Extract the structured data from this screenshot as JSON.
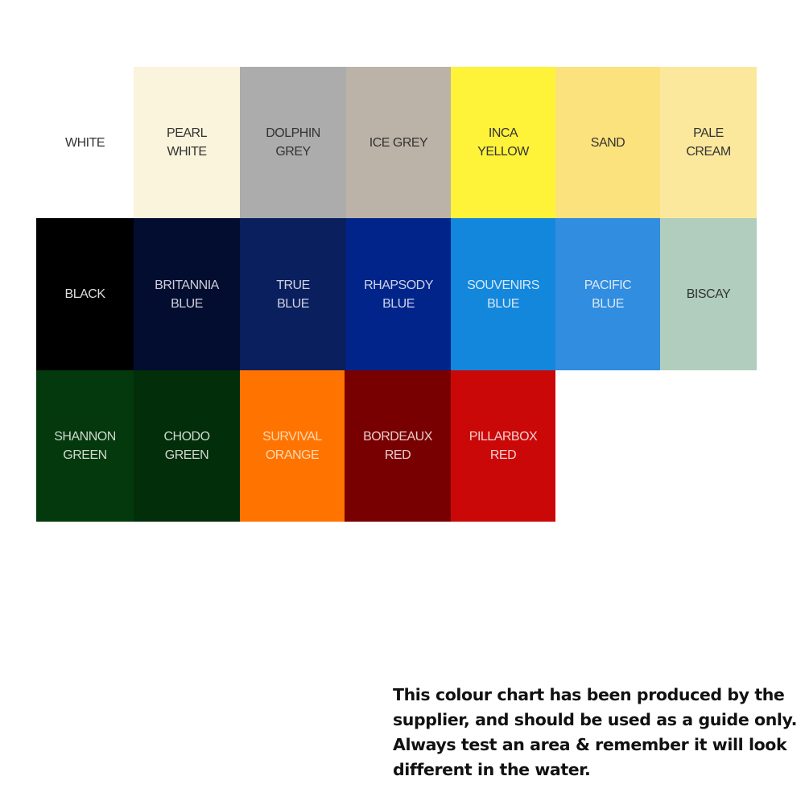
{
  "swatches": [
    {
      "label": "WHITE",
      "color": "#ffffff",
      "text_color": "#333333"
    },
    {
      "label": "PEARL\nWHITE",
      "color": "#faf4dc",
      "text_color": "#333333"
    },
    {
      "label": "DOLPHIN\nGREY",
      "color": "#acacac",
      "text_color": "#333333"
    },
    {
      "label": "ICE GREY",
      "color": "#bcb3a8",
      "text_color": "#333333"
    },
    {
      "label": "INCA\nYELLOW",
      "color": "#fff33a",
      "text_color": "#333333"
    },
    {
      "label": "SAND",
      "color": "#fce27c",
      "text_color": "#333333"
    },
    {
      "label": "PALE\nCREAM",
      "color": "#fbe89c",
      "text_color": "#333333"
    },
    {
      "label": "BLACK",
      "color": "#000000",
      "text_color": "#dddddd"
    },
    {
      "label": "BRITANNIA\nBLUE",
      "color": "#020d30",
      "text_color": "#cfcfd8"
    },
    {
      "label": "TRUE\nBLUE",
      "color": "#0a1f5e",
      "text_color": "#cfd3e0"
    },
    {
      "label": "RHAPSODY\nBLUE",
      "color": "#01248a",
      "text_color": "#cdd3ea"
    },
    {
      "label": "SOUVENIRS\nBLUE",
      "color": "#1387dc",
      "text_color": "#d8e8f6"
    },
    {
      "label": "PACIFIC\nBLUE",
      "color": "#308ddf",
      "text_color": "#dbe9f7"
    },
    {
      "label": "BISCAY",
      "color": "#b0cdbd",
      "text_color": "#333333"
    },
    {
      "label": "SHANNON\nGREEN",
      "color": "#03390d",
      "text_color": "#cfd8cf"
    },
    {
      "label": "CHODO\nGREEN",
      "color": "#022e0a",
      "text_color": "#cfd8cf"
    },
    {
      "label": "SURVIVAL\nORANGE",
      "color": "#ff7300",
      "text_color": "#ffd8b0"
    },
    {
      "label": "BORDEAUX\nRED",
      "color": "#790000",
      "text_color": "#e8cccc"
    },
    {
      "label": "PILLARBOX\nRED",
      "color": "#cb0808",
      "text_color": "#f4d0d0"
    }
  ],
  "disclaimer": "This colour chart has been produced by the supplier, and should be used as a guide only. Always test an area & remember it will look different in the water."
}
